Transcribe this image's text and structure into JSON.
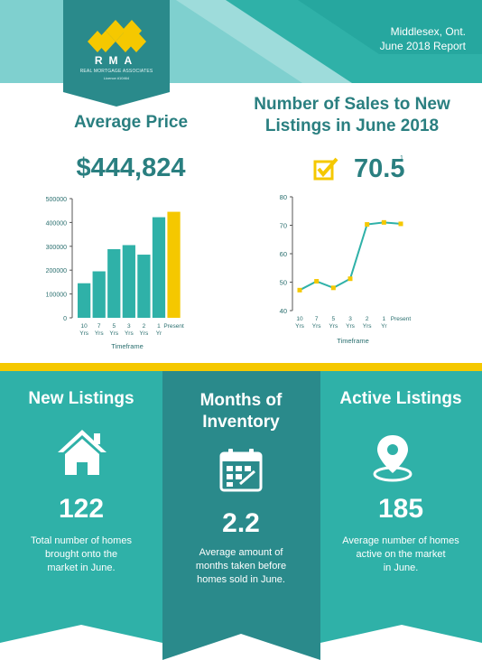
{
  "header": {
    "location": "Middlesex, Ont.",
    "report": "June 2018 Report",
    "logo_text": "RMA",
    "logo_sub": "REAL MORTGAGE ASSOCIATES",
    "logo_licence": "Licence #10464",
    "colors": {
      "teal": "#2fb1a8",
      "light": "#7fd0cf",
      "yellow": "#f5c800"
    }
  },
  "left": {
    "title": "Average Price",
    "value": "$444,824"
  },
  "right": {
    "title_line1": "Number of Sales to New",
    "title_line2": "Listings in June 2018",
    "value": "70.5",
    "footnote": "1",
    "icon": "checkbox-check-icon"
  },
  "chart_data": [
    {
      "type": "bar",
      "title": "Average Price",
      "xlabel": "Timeframe",
      "ylabel": "",
      "ylim": [
        0,
        500000
      ],
      "yticks": [
        "0",
        "100000",
        "200000",
        "300000",
        "400000",
        "500000"
      ],
      "categories": [
        [
          "10",
          "Yrs"
        ],
        [
          "7",
          "Yrs"
        ],
        [
          "5",
          "Yrs"
        ],
        [
          "3",
          "Yrs"
        ],
        [
          "2",
          "Yrs"
        ],
        [
          "1",
          "Yr"
        ],
        [
          "Present"
        ]
      ],
      "values": [
        145000,
        195000,
        288000,
        305000,
        265000,
        422000,
        444824
      ],
      "colors": [
        "#2fb1a8",
        "#2fb1a8",
        "#2fb1a8",
        "#2fb1a8",
        "#2fb1a8",
        "#2fb1a8",
        "#f5c800"
      ]
    },
    {
      "type": "line",
      "title": "Number of Sales to New Listings in June 2018",
      "xlabel": "Timeframe",
      "ylabel": "",
      "ylim": [
        40,
        80
      ],
      "yticks": [
        "40",
        "50",
        "60",
        "70",
        "80"
      ],
      "categories": [
        [
          "10",
          "Yrs"
        ],
        [
          "7",
          "Yrs"
        ],
        [
          "5",
          "Yrs"
        ],
        [
          "3",
          "Yrs"
        ],
        [
          "2",
          "Yrs"
        ],
        [
          "1",
          "Yr"
        ],
        [
          "Present"
        ]
      ],
      "values": [
        47.2,
        50.3,
        48.0,
        51.2,
        70.3,
        71.0,
        70.5
      ],
      "line_color": "#2fb1a8",
      "marker_color": "#f5c800"
    }
  ],
  "columns": [
    {
      "title_line1": "New Listings",
      "title_line2": "",
      "icon": "house-icon",
      "number": "122",
      "desc": [
        "Total number of homes",
        "brought onto the",
        "market in June."
      ]
    },
    {
      "title_line1": "Months of",
      "title_line2": "Inventory",
      "icon": "calendar-icon",
      "number": "2.2",
      "desc": [
        "Average amount of",
        "months taken before",
        "homes sold in June."
      ]
    },
    {
      "title_line1": "Active Listings",
      "title_line2": "",
      "icon": "location-pin-icon",
      "number": "185",
      "desc": [
        "Average number of homes",
        "active on the market",
        "in June."
      ]
    }
  ]
}
